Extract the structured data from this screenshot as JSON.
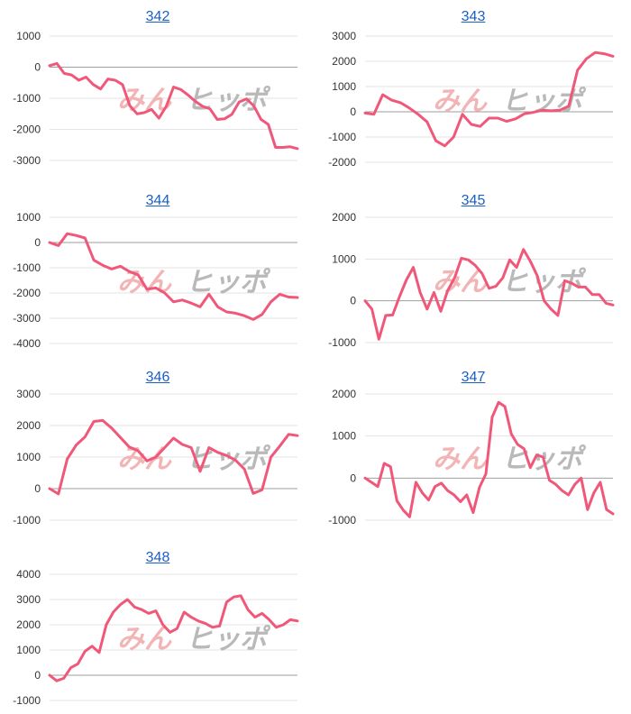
{
  "watermark": {
    "left": "みん",
    "right": "ヒッポ",
    "left_color": "#f2b4b4",
    "right_color": "#b9b9b9"
  },
  "colors": {
    "line": "#f0587a",
    "grid": "#e3e3e3",
    "zero": "#9e9e9e",
    "title_link": "#1a5fc7"
  },
  "chart_data": [
    {
      "type": "line",
      "title": "342",
      "ylim": [
        -3000,
        1000
      ],
      "ticks": [
        1000,
        0,
        -1000,
        -2000,
        -3000
      ],
      "values": [
        50,
        120,
        -200,
        -250,
        -420,
        -320,
        -560,
        -700,
        -380,
        -420,
        -560,
        -1240,
        -1500,
        -1460,
        -1360,
        -1640,
        -1260,
        -640,
        -720,
        -900,
        -1100,
        -1260,
        -1340,
        -1680,
        -1660,
        -1520,
        -1120,
        -1020,
        -1240,
        -1680,
        -1840,
        -2580,
        -2580,
        -2560,
        -2620
      ]
    },
    {
      "type": "line",
      "title": "343",
      "ylim": [
        -2000,
        3000
      ],
      "ticks": [
        3000,
        2000,
        1000,
        0,
        -1000,
        -2000
      ],
      "values": [
        -50,
        -100,
        680,
        460,
        360,
        150,
        -100,
        -400,
        -1150,
        -1350,
        -1000,
        -100,
        -500,
        -580,
        -250,
        -250,
        -380,
        -280,
        -80,
        -20,
        60,
        40,
        60,
        220,
        1650,
        2100,
        2350,
        2300,
        2200
      ]
    },
    {
      "type": "line",
      "title": "344",
      "ylim": [
        -4000,
        1000
      ],
      "ticks": [
        1000,
        0,
        -1000,
        -2000,
        -3000,
        -4000
      ],
      "values": [
        0,
        -120,
        350,
        280,
        180,
        -700,
        -900,
        -1050,
        -940,
        -1150,
        -1280,
        -1850,
        -1800,
        -2000,
        -2350,
        -2280,
        -2400,
        -2550,
        -2050,
        -2550,
        -2750,
        -2800,
        -2900,
        -3050,
        -2850,
        -2350,
        -2050,
        -2160,
        -2180
      ]
    },
    {
      "type": "line",
      "title": "345",
      "ylim": [
        -1000,
        2000
      ],
      "ticks": [
        2000,
        1000,
        0,
        -1000
      ],
      "values": [
        0,
        -200,
        -920,
        -350,
        -340,
        100,
        500,
        800,
        200,
        -200,
        200,
        -250,
        250,
        550,
        1020,
        980,
        850,
        650,
        300,
        350,
        550,
        980,
        800,
        1230,
        950,
        600,
        0,
        -200,
        -350,
        480,
        420,
        330,
        330,
        150,
        150,
        -60,
        -100
      ]
    },
    {
      "type": "line",
      "title": "346",
      "ylim": [
        -1000,
        3000
      ],
      "ticks": [
        3000,
        2000,
        1000,
        0,
        -1000
      ],
      "values": [
        0,
        -170,
        940,
        1380,
        1640,
        2130,
        2160,
        1920,
        1620,
        1320,
        1200,
        880,
        1000,
        1300,
        1600,
        1400,
        1300,
        550,
        1300,
        1150,
        1050,
        900,
        620,
        -150,
        -40,
        1000,
        1350,
        1720,
        1680
      ]
    },
    {
      "type": "line",
      "title": "347",
      "ylim": [
        -1000,
        2000
      ],
      "ticks": [
        2000,
        1000,
        0,
        -1000
      ],
      "values": [
        0,
        -100,
        -200,
        350,
        270,
        -540,
        -760,
        -920,
        -100,
        -350,
        -520,
        -200,
        -120,
        -300,
        -400,
        -560,
        -400,
        -820,
        -220,
        100,
        1450,
        1800,
        1700,
        1050,
        800,
        700,
        250,
        550,
        500,
        -50,
        -150,
        -300,
        -400,
        -150,
        0,
        -750,
        -350,
        -100,
        -750,
        -850
      ]
    },
    {
      "type": "line",
      "title": "348",
      "ylim": [
        -1000,
        4000
      ],
      "ticks": [
        4000,
        3000,
        2000,
        1000,
        0,
        -1000
      ],
      "values": [
        0,
        -220,
        -120,
        300,
        450,
        950,
        1150,
        900,
        2000,
        2500,
        2800,
        3000,
        2700,
        2600,
        2450,
        2550,
        2000,
        1700,
        1850,
        2500,
        2300,
        2150,
        2050,
        1900,
        1950,
        2900,
        3100,
        3150,
        2600,
        2300,
        2450,
        2200,
        1900,
        2000,
        2200,
        2150
      ]
    }
  ]
}
